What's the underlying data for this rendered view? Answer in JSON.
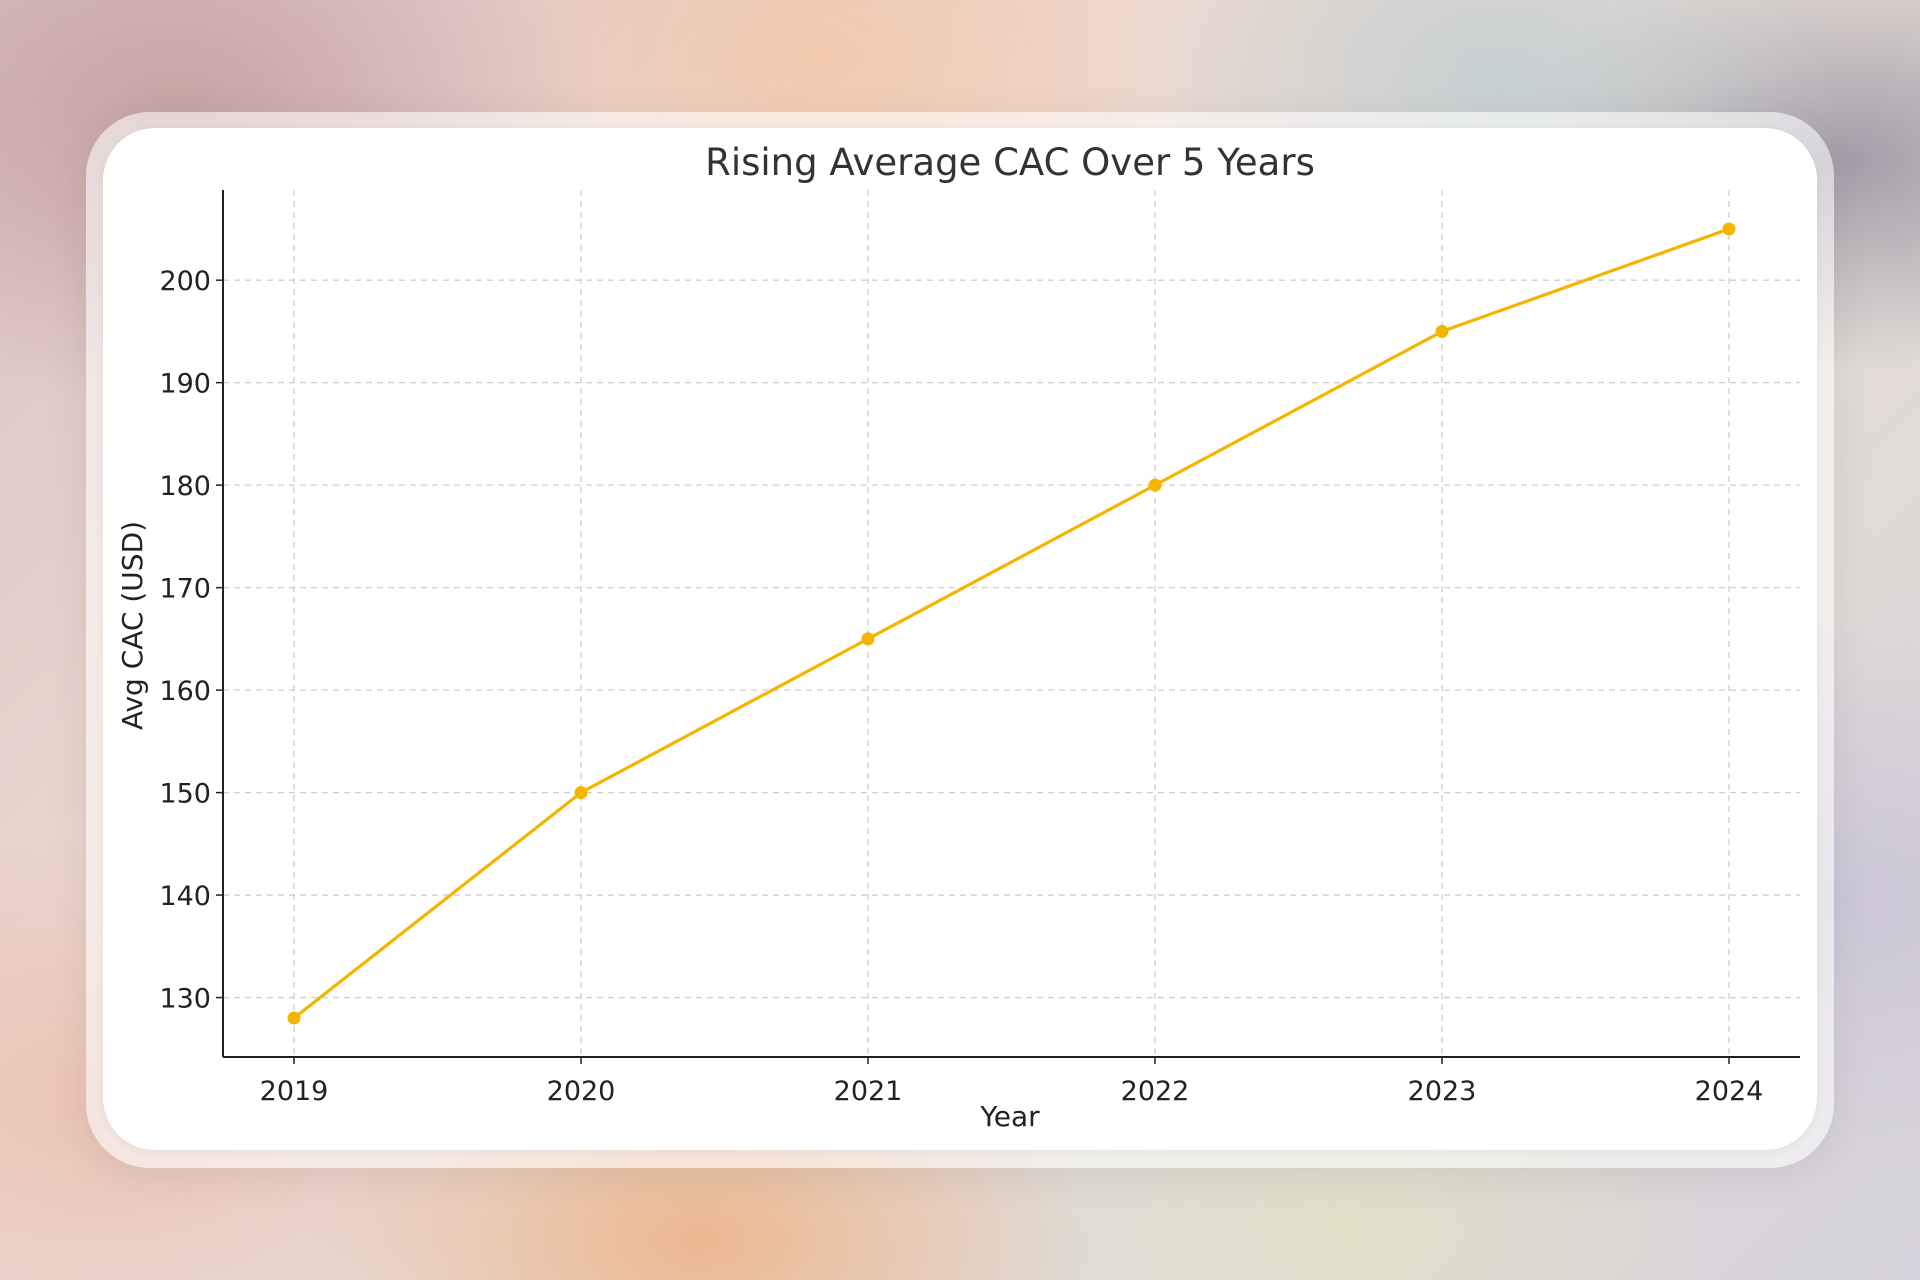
{
  "chart_data": {
    "type": "line",
    "title": "Rising Average CAC Over 5 Years",
    "xlabel": "Year",
    "ylabel": "Avg CAC (USD)",
    "x": [
      "2019",
      "2020",
      "2021",
      "2022",
      "2023",
      "2024"
    ],
    "series": [
      {
        "values": [
          128,
          150,
          165,
          180,
          195,
          205
        ]
      }
    ],
    "yticks": [
      130,
      140,
      150,
      160,
      170,
      180,
      190,
      200
    ],
    "ylim": [
      124.2,
      208.8
    ],
    "grid": true,
    "line_color": "#f4b400",
    "marker": "circle"
  }
}
